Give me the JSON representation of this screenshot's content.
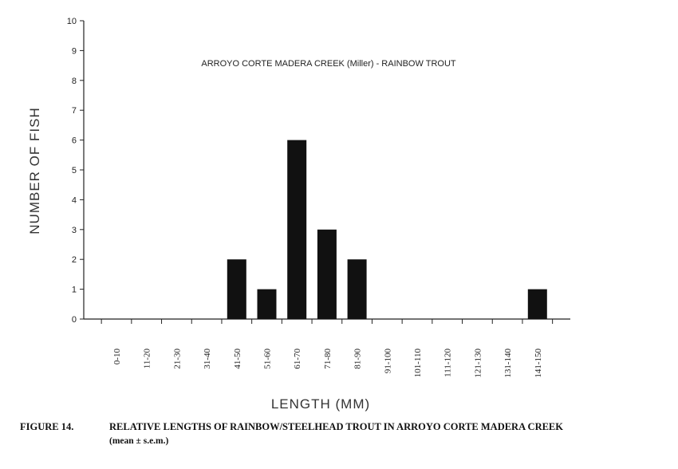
{
  "chart_data": {
    "type": "bar",
    "title": "ARROYO CORTE MADERA CREEK (Miller) - RAINBOW TROUT",
    "xlabel": "LENGTH (MM)",
    "ylabel": "NUMBER OF FISH",
    "ylim": [
      0,
      10
    ],
    "yticks": [
      "0",
      "1",
      "2",
      "3",
      "4",
      "5",
      "6",
      "7",
      "8",
      "9",
      "10"
    ],
    "categories": [
      "0-10",
      "11-20",
      "21-30",
      "31-40",
      "41-50",
      "51-60",
      "61-70",
      "71-80",
      "81-90",
      "91-100",
      "101-110",
      "111-120",
      "121-130",
      "131-140",
      "141-150"
    ],
    "values": [
      0,
      0,
      0,
      0,
      2,
      1,
      6,
      3,
      2,
      0,
      0,
      0,
      0,
      0,
      1
    ],
    "bar_color": "#111111",
    "grid": false
  },
  "caption": {
    "label": "FIGURE 14.",
    "text": "RELATIVE LENGTHS OF RAINBOW/STEELHEAD TROUT IN ARROYO CORTE MADERA CREEK",
    "subtext": "(mean ±  s.e.m.)"
  }
}
